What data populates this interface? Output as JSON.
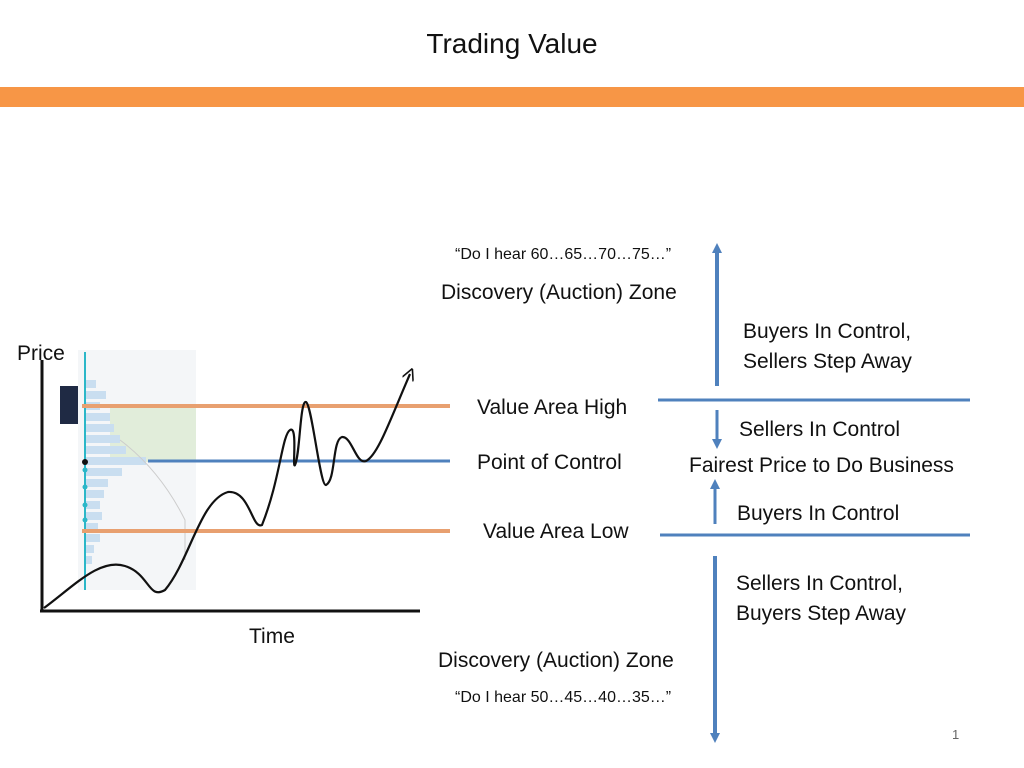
{
  "slide": {
    "title": "Trading Value",
    "page_number": "1",
    "band_color": "#F79646"
  },
  "chart": {
    "y_label": "Price",
    "x_label": "Time"
  },
  "levels": {
    "value_area_high": "Value Area High",
    "point_of_control": "Point of Control",
    "value_area_low": "Value Area Low",
    "value_line_color": "#E8A070",
    "poc_line_color": "#4F81BD"
  },
  "zones": {
    "upper_quote": "“Do I hear 60…65…70…75…”",
    "upper_zone": "Discovery (Auction) Zone",
    "lower_zone": "Discovery (Auction) Zone",
    "lower_quote": "“Do I hear 50…45…40…35…”"
  },
  "control": {
    "buyers_in_control_top": "Buyers In Control,",
    "sellers_step_away": "Sellers Step Away",
    "sellers_in_control": "Sellers In Control",
    "fairest_price": "Fairest Price to Do Business",
    "buyers_in_control": "Buyers In Control",
    "sellers_in_control_bottom": "Sellers In Control,",
    "buyers_step_away": "Buyers Step Away",
    "arrow_color": "#4F81BD"
  }
}
